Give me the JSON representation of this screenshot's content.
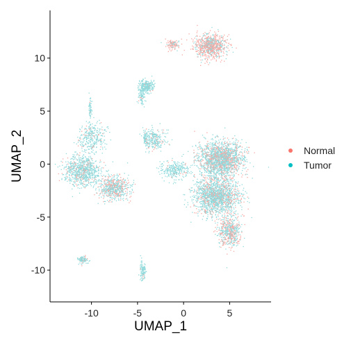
{
  "chart_data": {
    "type": "scatter",
    "xlabel": "UMAP_1",
    "ylabel": "UMAP_2",
    "xlim": [
      -14.5,
      9.5
    ],
    "ylim": [
      -13,
      14.5
    ],
    "x_ticks": [
      -10,
      -5,
      0,
      5
    ],
    "y_ticks": [
      10,
      5,
      0,
      -5,
      -10
    ],
    "x_tick_labels": [
      "-10",
      "-5",
      "0",
      "5"
    ],
    "y_tick_labels": [
      "10",
      "5",
      "0",
      "-5",
      "-10"
    ],
    "grid": false,
    "legend_position": "right",
    "series": [
      {
        "name": "Normal",
        "color": "#F8766D"
      },
      {
        "name": "Tumor",
        "color": "#00BFC4"
      }
    ],
    "clusters": [
      {
        "center": [
          2.8,
          11.2
        ],
        "spread": [
          1.6,
          1.0
        ],
        "normal_share": 0.65,
        "weight": 0.09
      },
      {
        "center": [
          -1.2,
          11.3
        ],
        "spread": [
          0.7,
          0.4
        ],
        "normal_share": 0.7,
        "weight": 0.012
      },
      {
        "center": [
          -4.0,
          7.4
        ],
        "spread": [
          0.7,
          0.5
        ],
        "normal_share": 0.05,
        "weight": 0.025
      },
      {
        "center": [
          -4.6,
          6.5
        ],
        "spread": [
          0.3,
          0.9
        ],
        "normal_share": 0.05,
        "weight": 0.012
      },
      {
        "center": [
          -3.2,
          2.3
        ],
        "spread": [
          1.1,
          1.0
        ],
        "normal_share": 0.15,
        "weight": 0.03
      },
      {
        "center": [
          -1.0,
          -0.5
        ],
        "spread": [
          1.4,
          0.8
        ],
        "normal_share": 0.05,
        "weight": 0.03
      },
      {
        "center": [
          4.0,
          0.5
        ],
        "spread": [
          2.2,
          1.5
        ],
        "normal_share": 0.3,
        "weight": 0.2
      },
      {
        "center": [
          3.5,
          -3.0
        ],
        "spread": [
          2.2,
          1.6
        ],
        "normal_share": 0.25,
        "weight": 0.18
      },
      {
        "center": [
          5.0,
          -6.3
        ],
        "spread": [
          1.1,
          1.3
        ],
        "normal_share": 0.45,
        "weight": 0.06
      },
      {
        "center": [
          -11.0,
          -0.6
        ],
        "spread": [
          1.8,
          1.3
        ],
        "normal_share": 0.15,
        "weight": 0.09
      },
      {
        "center": [
          -7.6,
          -2.2
        ],
        "spread": [
          1.4,
          1.0
        ],
        "normal_share": 0.35,
        "weight": 0.07
      },
      {
        "center": [
          -10.0,
          2.5
        ],
        "spread": [
          1.3,
          1.2
        ],
        "normal_share": 0.15,
        "weight": 0.035
      },
      {
        "center": [
          -10.2,
          5.3
        ],
        "spread": [
          0.2,
          1.0
        ],
        "normal_share": 0.05,
        "weight": 0.006
      },
      {
        "center": [
          -11.0,
          -9.0
        ],
        "spread": [
          0.5,
          0.3
        ],
        "normal_share": 0.2,
        "weight": 0.012
      },
      {
        "center": [
          -4.5,
          -10.0
        ],
        "spread": [
          0.35,
          0.9
        ],
        "normal_share": 0.05,
        "weight": 0.012
      },
      {
        "center": [
          -4.2,
          2.5
        ],
        "spread": [
          0.25,
          0.6
        ],
        "normal_share": 0.05,
        "weight": 0.006
      }
    ]
  }
}
